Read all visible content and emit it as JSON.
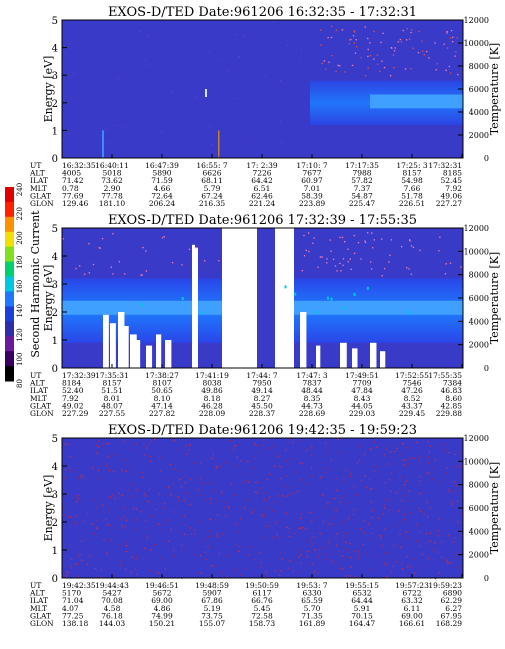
{
  "colorbar": {
    "label": "Second Harmonic Current",
    "ticks": [
      "80",
      "100",
      "120",
      "140",
      "160",
      "180",
      "200",
      "220",
      "240"
    ],
    "colors": [
      "#000000",
      "#3a0060",
      "#6a1a9a",
      "#2e2ea8",
      "#1a40d8",
      "#1e78ff",
      "#00c8e0",
      "#00d070",
      "#80e020",
      "#f0e000",
      "#ff9000",
      "#ff2000",
      "#e00000"
    ]
  },
  "chart_data": [
    {
      "type": "heatmap",
      "title": "EXOS-D/TED   Date:961206   16:32:35 - 17:32:31",
      "ylabel": "Energy [eV]",
      "y2label": "Temperature [K]",
      "ylim": [
        0,
        5
      ],
      "y2lim": [
        0,
        12000
      ],
      "yticks": [
        "0",
        "1",
        "2",
        "3",
        "4",
        "5"
      ],
      "y2ticks": [
        "0",
        "2000",
        "4000",
        "6000",
        "8000",
        "10000",
        "12000"
      ],
      "background": "#3a3ac8",
      "table": {
        "row_labels": [
          "UT",
          "ALT",
          "ILAT",
          "MLT",
          "GLAT",
          "GLON"
        ],
        "columns": [
          [
            "16:32:35",
            "4005",
            "71.42",
            "0.78",
            "77.69",
            "129.46"
          ],
          [
            "16:40:11",
            "5018",
            "73.62",
            "2.90",
            "77.78",
            "181.10"
          ],
          [
            "16:47:39",
            "5890",
            "71.59",
            "4.66",
            "72.64",
            "206.24"
          ],
          [
            "16:55: 7",
            "6626",
            "68.11",
            "5.79",
            "67.24",
            "216.35"
          ],
          [
            "17: 2:39",
            "7226",
            "64.42",
            "6.51",
            "62.46",
            "221.24"
          ],
          [
            "17:10: 7",
            "7677",
            "60.97",
            "7.01",
            "58.39",
            "223.89"
          ],
          [
            "17:17:35",
            "7988",
            "57.82",
            "7.37",
            "54.87",
            "225.47"
          ],
          [
            "17:25: 3",
            "8157",
            "54.98",
            "7.66",
            "51.78",
            "226.51"
          ],
          [
            "17:32:31",
            "8185",
            "52.45",
            "7.92",
            "49.06",
            "227.27"
          ]
        ]
      }
    },
    {
      "type": "heatmap",
      "title": "EXOS-D/TED   Date:961206   17:32:39 - 17:55:35",
      "ylabel": "Energy [eV]",
      "y2label": "Temperature [K]",
      "ylim": [
        0,
        5
      ],
      "y2lim": [
        0,
        12000
      ],
      "yticks": [
        "0",
        "1",
        "2",
        "3",
        "4",
        "5"
      ],
      "y2ticks": [
        "0",
        "2000",
        "4000",
        "6000",
        "8000",
        "10000",
        "12000"
      ],
      "background": "#3a3ac8",
      "table": {
        "row_labels": [
          "UT",
          "ALT",
          "ILAT",
          "MLT",
          "GLAT",
          "GLON"
        ],
        "columns": [
          [
            "17:32:39",
            "8184",
            "52.40",
            "7.92",
            "49.02",
            "227.29"
          ],
          [
            "17:35:31",
            "8157",
            "51.51",
            "8.01",
            "48.07",
            "227.55"
          ],
          [
            "17:38:27",
            "8107",
            "50.65",
            "8.10",
            "47.14",
            "227.82"
          ],
          [
            "17:41:19",
            "8038",
            "49.86",
            "8.18",
            "46.28",
            "228.09"
          ],
          [
            "17:44: 7",
            "7950",
            "49.14",
            "8.27",
            "45.50",
            "228.37"
          ],
          [
            "17:47: 3",
            "7837",
            "48.44",
            "8.35",
            "44.73",
            "228.69"
          ],
          [
            "17:49:51",
            "7709",
            "47.84",
            "8.43",
            "44.05",
            "229.03"
          ],
          [
            "17:52:55",
            "7546",
            "47.26",
            "8.52",
            "43.37",
            "229.45"
          ],
          [
            "17:55:35",
            "7384",
            "46.83",
            "8.60",
            "42.85",
            "229.88"
          ]
        ]
      }
    },
    {
      "type": "heatmap",
      "title": "EXOS-D/TED   Date:961206   19:42:35 - 19:59:23",
      "ylabel": "Energy [eV]",
      "y2label": "Temperature [K]",
      "ylim": [
        0,
        5
      ],
      "y2lim": [
        0,
        12000
      ],
      "yticks": [
        "0",
        "1",
        "2",
        "3",
        "4",
        "5"
      ],
      "y2ticks": [
        "0",
        "2000",
        "4000",
        "6000",
        "8000",
        "10000",
        "12000"
      ],
      "background": "#3a3ac8",
      "table": {
        "row_labels": [
          "UT",
          "ALT",
          "ILAT",
          "MLT",
          "GLAT",
          "GLON"
        ],
        "columns": [
          [
            "19:42:35",
            "5170",
            "71.04",
            "4.07",
            "77.25",
            "138.18"
          ],
          [
            "19:44:43",
            "5427",
            "70.08",
            "4.58",
            "76.18",
            "144.03"
          ],
          [
            "19:46:51",
            "5672",
            "69.00",
            "4.86",
            "74.99",
            "150.21"
          ],
          [
            "19:48:59",
            "5907",
            "67.86",
            "5.19",
            "73.75",
            "155.07"
          ],
          [
            "19:50:59",
            "6117",
            "66.76",
            "5.45",
            "72.58",
            "158.73"
          ],
          [
            "19:53: 7",
            "6330",
            "65.59",
            "5.70",
            "71.35",
            "161.89"
          ],
          [
            "19:55:15",
            "6532",
            "64.44",
            "5.91",
            "70.15",
            "164.47"
          ],
          [
            "19:57:23",
            "6722",
            "63.32",
            "6.11",
            "69.00",
            "166.61"
          ],
          [
            "19:59:23",
            "6890",
            "62.29",
            "6.27",
            "67.95",
            "168.29"
          ]
        ]
      }
    }
  ]
}
